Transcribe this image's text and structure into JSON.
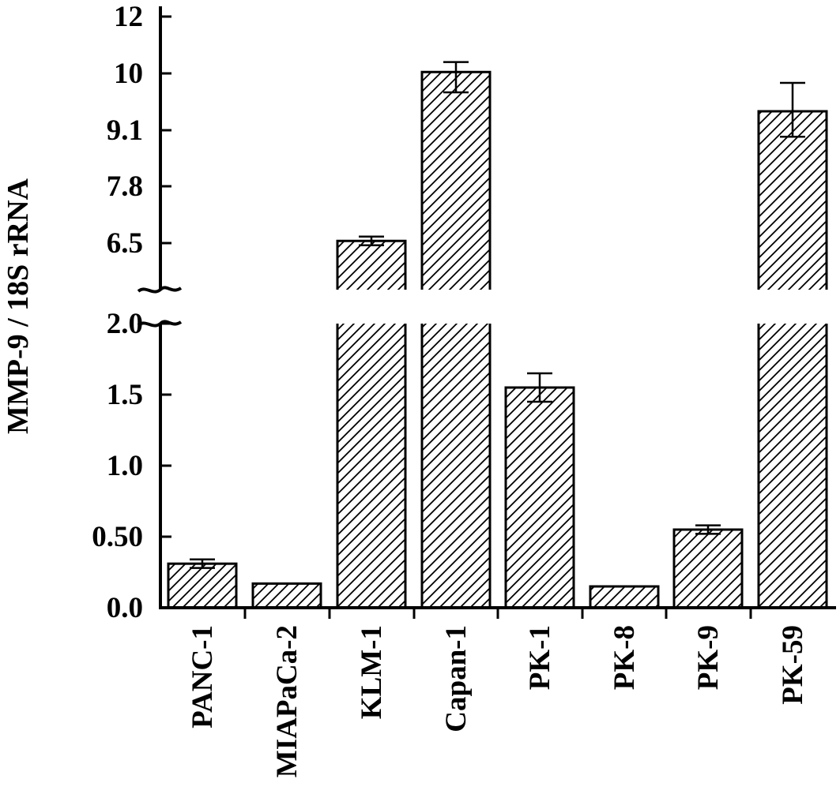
{
  "chart_data": {
    "type": "bar",
    "ylabel": "MMP-9 / 18S rRNA",
    "y_axis_break": [
      2.0,
      6.5
    ],
    "y_ticks_lower": [
      "0.0",
      "0.50",
      "1.0",
      "1.5",
      "2.0"
    ],
    "y_ticks_upper": [
      "6.5",
      "7.8",
      "9.1",
      "10",
      "12"
    ],
    "categories": [
      "PANC-1",
      "MIAPaCa-2",
      "KLM-1",
      "Capan-1",
      "PK-1",
      "PK-8",
      "PK-9",
      "PK-59"
    ],
    "values": [
      0.31,
      0.17,
      6.55,
      10.05,
      1.55,
      0.15,
      0.55,
      9.4
    ],
    "errors": [
      0.03,
      0.0,
      0.1,
      0.35,
      0.1,
      0.0,
      0.03,
      0.45
    ],
    "bar_fill": "hatched"
  }
}
